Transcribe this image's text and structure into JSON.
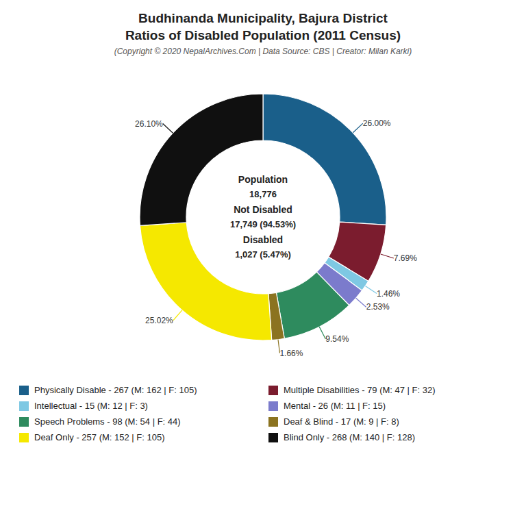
{
  "chart_data": {
    "type": "pie",
    "title": "Budhinanda Municipality, Bajura District\nRatios of Disabled Population (2011 Census)",
    "subtitle": "(Copyright © 2020 NepalArchives.Com | Data Source: CBS | Creator: Milan Karki)",
    "categories": [
      "Physically Disable - 267 (M: 162 | F: 105)",
      "Multiple Disabilities - 79 (M: 47 | F: 32)",
      "Intellectual - 15 (M: 12 | F: 3)",
      "Mental - 26 (M: 11 | F: 15)",
      "Speech Problems - 98 (M: 54 | F: 44)",
      "Deaf & Blind - 17 (M: 9 | F: 8)",
      "Deaf Only - 257 (M: 152 | F: 105)",
      "Blind Only - 268 (M: 140 | F: 128)"
    ],
    "values": [
      26.0,
      7.69,
      1.46,
      2.53,
      9.54,
      1.66,
      25.02,
      26.1
    ],
    "value_labels": [
      "26.00%",
      "7.69%",
      "1.46%",
      "2.53%",
      "9.54%",
      "1.66%",
      "25.02%",
      "26.10%"
    ],
    "colors": [
      "#1a5f8a",
      "#7b1c2e",
      "#7ec8e3",
      "#7b7bcc",
      "#2e8b5e",
      "#8b7320",
      "#f5e800",
      "#101010"
    ],
    "annotations": [
      "Population",
      "18,776",
      "Not Disabled",
      "17,749 (94.53%)",
      "Disabled",
      "1,027 (5.47%)"
    ],
    "data_labels": true,
    "legend": "bottom"
  }
}
